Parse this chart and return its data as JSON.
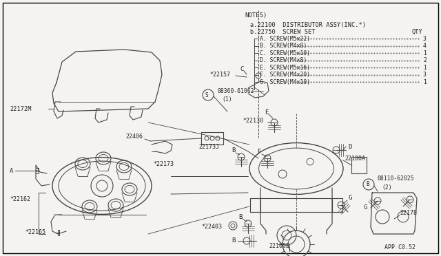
{
  "background_color": "#f5f3ef",
  "line_color": "#444444",
  "text_color": "#222222",
  "notes_header": "NOTES)",
  "notes_a": "a.22100  DISTRIBUTOR ASSY(INC.*)",
  "notes_b": "b.22750  SCREW SET",
  "notes_qty": "QTY",
  "screw_items": [
    [
      "A.",
      "SCREW(M5x22)",
      "3"
    ],
    [
      "B.",
      "SCREW(M4x8) ",
      "4"
    ],
    [
      "C.",
      "SCREW(M5x10)",
      "1"
    ],
    [
      "D.",
      "SCREW(M4x8) ",
      "2"
    ],
    [
      "E.",
      "SCREW(M5x16)",
      "1"
    ],
    [
      "F.",
      "SCREW(M4x20)",
      "3"
    ],
    [
      "G.",
      "SCREW(M4x10)",
      "1"
    ]
  ],
  "app_code": "APP C0.52"
}
